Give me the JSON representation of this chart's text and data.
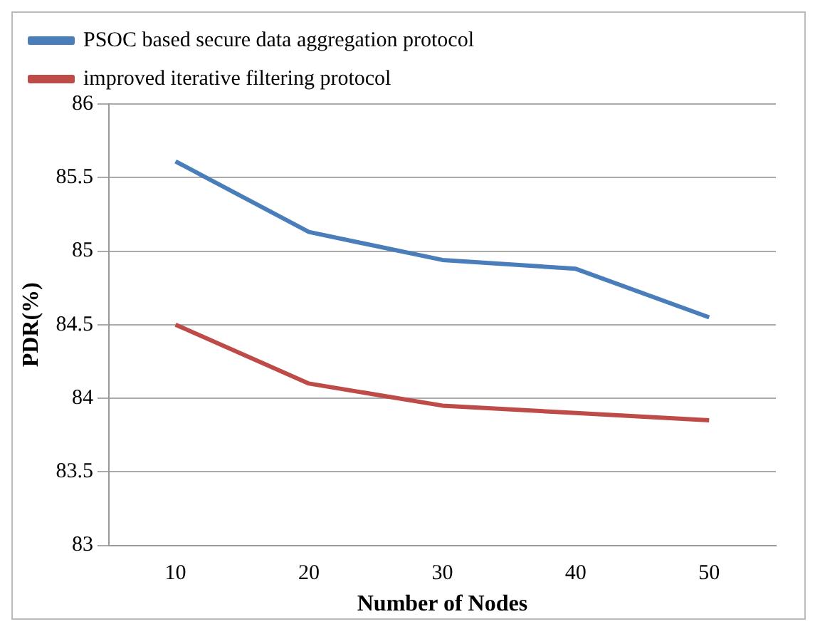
{
  "chart_data": {
    "type": "line",
    "xlabel": "Number of Nodes",
    "ylabel": "PDR(%)",
    "categories": [
      "10",
      "20",
      "30",
      "40",
      "50"
    ],
    "series": [
      {
        "name": "PSOC based secure data aggregation protocol",
        "color": "#4a7ebb",
        "values": [
          85.61,
          85.13,
          84.94,
          84.88,
          84.55
        ]
      },
      {
        "name": "improved iterative filtering protocol",
        "color": "#be4b48",
        "values": [
          84.5,
          84.1,
          83.95,
          83.9,
          83.85
        ]
      }
    ],
    "ylim": [
      83,
      86
    ],
    "yticks": [
      83,
      83.5,
      84,
      84.5,
      85,
      85.5,
      86
    ],
    "grid": "y",
    "legend": "top",
    "marker": "none",
    "line_style": "solid"
  }
}
